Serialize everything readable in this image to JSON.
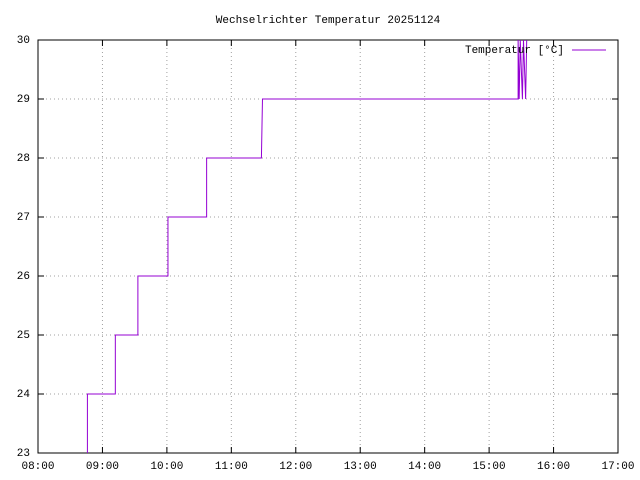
{
  "chart_data": {
    "type": "line",
    "title": "Wechselrichter Temperatur 20251124",
    "x": [
      526,
      526,
      552,
      552,
      573,
      573,
      601,
      601,
      637,
      637,
      688,
      689,
      927,
      927,
      928,
      929,
      931,
      932,
      934,
      935
    ],
    "series": [
      {
        "name": "Temperatur [°C]",
        "color": "#9400d3",
        "values": [
          23,
          24,
          24,
          25,
          25,
          26,
          26,
          27,
          27,
          28,
          28,
          29,
          29,
          30,
          29,
          30,
          29,
          30,
          29,
          30
        ]
      }
    ],
    "xlim": [
      480,
      1020
    ],
    "xticks": [
      {
        "value": 480,
        "label": "08:00"
      },
      {
        "value": 540,
        "label": "09:00"
      },
      {
        "value": 600,
        "label": "10:00"
      },
      {
        "value": 660,
        "label": "11:00"
      },
      {
        "value": 720,
        "label": "12:00"
      },
      {
        "value": 780,
        "label": "13:00"
      },
      {
        "value": 840,
        "label": "14:00"
      },
      {
        "value": 900,
        "label": "15:00"
      },
      {
        "value": 960,
        "label": "16:00"
      },
      {
        "value": 1020,
        "label": "17:00"
      }
    ],
    "ylim": [
      23,
      30
    ],
    "yticks": [
      23,
      24,
      25,
      26,
      27,
      28,
      29,
      30
    ],
    "grid": true,
    "legend": "top-right"
  }
}
